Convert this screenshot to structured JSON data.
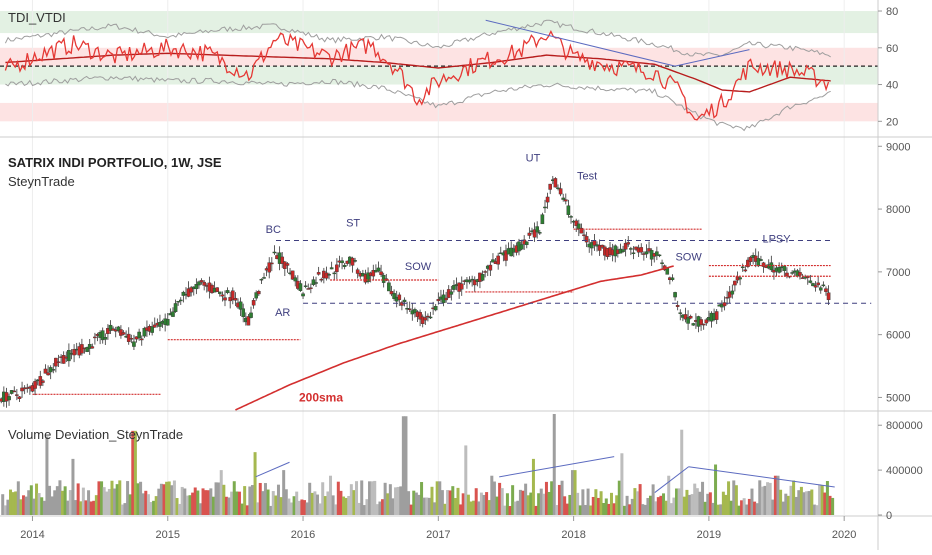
{
  "colors": {
    "up": "#2e7d32",
    "down": "#c62828",
    "sma": "#d32f2f",
    "rsi": "#e53935",
    "band": "#9e9e9e",
    "annot": "#3f3f7f",
    "arrow": "#5c6bc0",
    "green_zone": "#e3f1e3",
    "red_zone": "#fde3e3"
  },
  "tdi": {
    "title": "TDI_VTDI",
    "y_ticks": [
      "80",
      "60",
      "40",
      "20"
    ]
  },
  "main": {
    "title": "SATRIX INDI PORTFOLIO, 1W, JSE",
    "subtitle": "SteynTrade",
    "y_ticks": [
      "9000",
      "8000",
      "7000",
      "6000",
      "5000"
    ],
    "sma_label": "200sma",
    "annotations": [
      "BC",
      "ST",
      "AR",
      "SOW",
      "UT",
      "Test",
      "SOW",
      "LPSY"
    ]
  },
  "volume": {
    "title": "Volume Deviation_SteynTrade",
    "y_ticks": [
      "800000",
      "400000",
      "0"
    ]
  },
  "x_axis": {
    "labels": [
      "2014",
      "2015",
      "2016",
      "2017",
      "2018",
      "2019",
      "2020"
    ]
  },
  "chart_data": [
    {
      "type": "line",
      "title": "TDI_VTDI",
      "ylim": [
        12,
        86
      ],
      "zones": [
        {
          "from": 68,
          "to": 80,
          "color": "green"
        },
        {
          "from": 50,
          "to": 60,
          "color": "red"
        },
        {
          "from": 40,
          "to": 50,
          "color": "green"
        },
        {
          "from": 20,
          "to": 30,
          "color": "red"
        }
      ],
      "midline": 50,
      "series": [
        {
          "name": "rsi",
          "x": [
            2013.8,
            2014.0,
            2014.3,
            2014.6,
            2015.0,
            2015.3,
            2015.6,
            2015.8,
            2016.2,
            2016.5,
            2016.7,
            2016.85,
            2017.0,
            2017.3,
            2017.6,
            2017.8,
            2018.0,
            2018.3,
            2018.6,
            2018.8,
            2018.9,
            2019.1,
            2019.3,
            2019.6,
            2019.75,
            2019.9
          ],
          "values": [
            48,
            55,
            62,
            55,
            60,
            57,
            45,
            65,
            55,
            62,
            48,
            32,
            42,
            52,
            58,
            68,
            55,
            50,
            47,
            35,
            20,
            30,
            50,
            48,
            45,
            40
          ]
        },
        {
          "name": "signal",
          "x": [
            2013.8,
            2014.2,
            2014.6,
            2015.0,
            2015.4,
            2015.8,
            2016.2,
            2016.6,
            2017.0,
            2017.4,
            2017.8,
            2018.2,
            2018.6,
            2018.9,
            2019.1,
            2019.3,
            2019.6,
            2019.9
          ],
          "values": [
            52,
            54,
            56,
            57,
            56,
            55,
            54,
            52,
            49,
            52,
            56,
            54,
            51,
            43,
            37,
            36,
            44,
            42
          ]
        },
        {
          "name": "upper-band",
          "x": [
            2013.8,
            2014.2,
            2014.6,
            2015.0,
            2015.4,
            2015.8,
            2016.2,
            2016.6,
            2017.0,
            2017.4,
            2017.8,
            2018.2,
            2018.6,
            2018.9,
            2019.1,
            2019.3,
            2019.6,
            2019.9
          ],
          "values": [
            64,
            68,
            72,
            66,
            70,
            72,
            64,
            66,
            60,
            68,
            74,
            68,
            62,
            56,
            56,
            62,
            60,
            56
          ]
        },
        {
          "name": "lower-band",
          "x": [
            2013.8,
            2014.2,
            2014.6,
            2015.0,
            2015.4,
            2015.8,
            2016.2,
            2016.6,
            2017.0,
            2017.4,
            2017.8,
            2018.2,
            2018.6,
            2018.9,
            2019.1,
            2019.3,
            2019.6,
            2019.9
          ],
          "values": [
            40,
            42,
            44,
            42,
            42,
            40,
            42,
            38,
            28,
            36,
            40,
            38,
            36,
            24,
            18,
            16,
            28,
            35
          ]
        }
      ]
    },
    {
      "type": "line",
      "title": "SATRIX INDI PORTFOLIO, 1W, JSE",
      "ylim": [
        4800,
        9100
      ],
      "series": [
        {
          "name": "price",
          "x": [
            2013.75,
            2013.9,
            2014.0,
            2014.2,
            2014.4,
            2014.6,
            2014.75,
            2014.85,
            2015.0,
            2015.1,
            2015.25,
            2015.4,
            2015.5,
            2015.6,
            2015.65,
            2015.8,
            2015.9,
            2016.0,
            2016.1,
            2016.2,
            2016.35,
            2016.45,
            2016.55,
            2016.65,
            2016.8,
            2016.9,
            2017.0,
            2017.1,
            2017.3,
            2017.45,
            2017.6,
            2017.75,
            2017.85,
            2017.9,
            2018.0,
            2018.1,
            2018.25,
            2018.4,
            2018.55,
            2018.65,
            2018.72,
            2018.8,
            2018.9,
            2019.05,
            2019.2,
            2019.3,
            2019.45,
            2019.6,
            2019.7,
            2019.8,
            2019.9
          ],
          "values": [
            5000,
            5050,
            5150,
            5600,
            5800,
            6100,
            5900,
            6050,
            6200,
            6600,
            6800,
            6650,
            6600,
            6200,
            6600,
            7300,
            7000,
            6700,
            6900,
            7000,
            7200,
            6900,
            7000,
            6700,
            6400,
            6200,
            6500,
            6700,
            6900,
            7200,
            7400,
            7700,
            8500,
            8300,
            7800,
            7500,
            7300,
            7400,
            7300,
            7200,
            6900,
            6300,
            6200,
            6300,
            6800,
            7200,
            7100,
            7000,
            6900,
            6800,
            6600
          ]
        },
        {
          "name": "200sma",
          "x": [
            2015.5,
            2015.9,
            2016.3,
            2016.7,
            2017.0,
            2017.3,
            2017.6,
            2017.9,
            2018.2,
            2018.5,
            2018.75
          ],
          "values": [
            4800,
            5200,
            5550,
            5850,
            6050,
            6250,
            6450,
            6650,
            6850,
            6950,
            7100
          ]
        }
      ],
      "levels": [
        {
          "name": "BC-resistance",
          "value": 7500,
          "from": 2015.8,
          "to": 2019.9
        },
        {
          "name": "support",
          "value": 6500,
          "from": 2016.0,
          "to": 2020.2
        }
      ]
    },
    {
      "type": "bar",
      "title": "Volume Deviation_SteynTrade",
      "ylim": [
        0,
        900000
      ],
      "series": [
        {
          "name": "volume-peaks",
          "x": [
            2013.9,
            2014.1,
            2014.3,
            2014.5,
            2014.75,
            2015.1,
            2015.4,
            2015.65,
            2015.85,
            2016.2,
            2016.5,
            2016.7,
            2016.75,
            2017.0,
            2017.2,
            2017.4,
            2017.7,
            2017.85,
            2018.0,
            2018.35,
            2018.7,
            2018.8,
            2019.05,
            2019.15,
            2019.5,
            2019.85
          ],
          "values": [
            300000,
            700000,
            500000,
            300000,
            750000,
            250000,
            400000,
            560000,
            400000,
            350000,
            300000,
            250000,
            880000,
            300000,
            620000,
            350000,
            500000,
            900000,
            400000,
            550000,
            350000,
            760000,
            450000,
            300000,
            350000,
            200000
          ]
        }
      ]
    }
  ]
}
